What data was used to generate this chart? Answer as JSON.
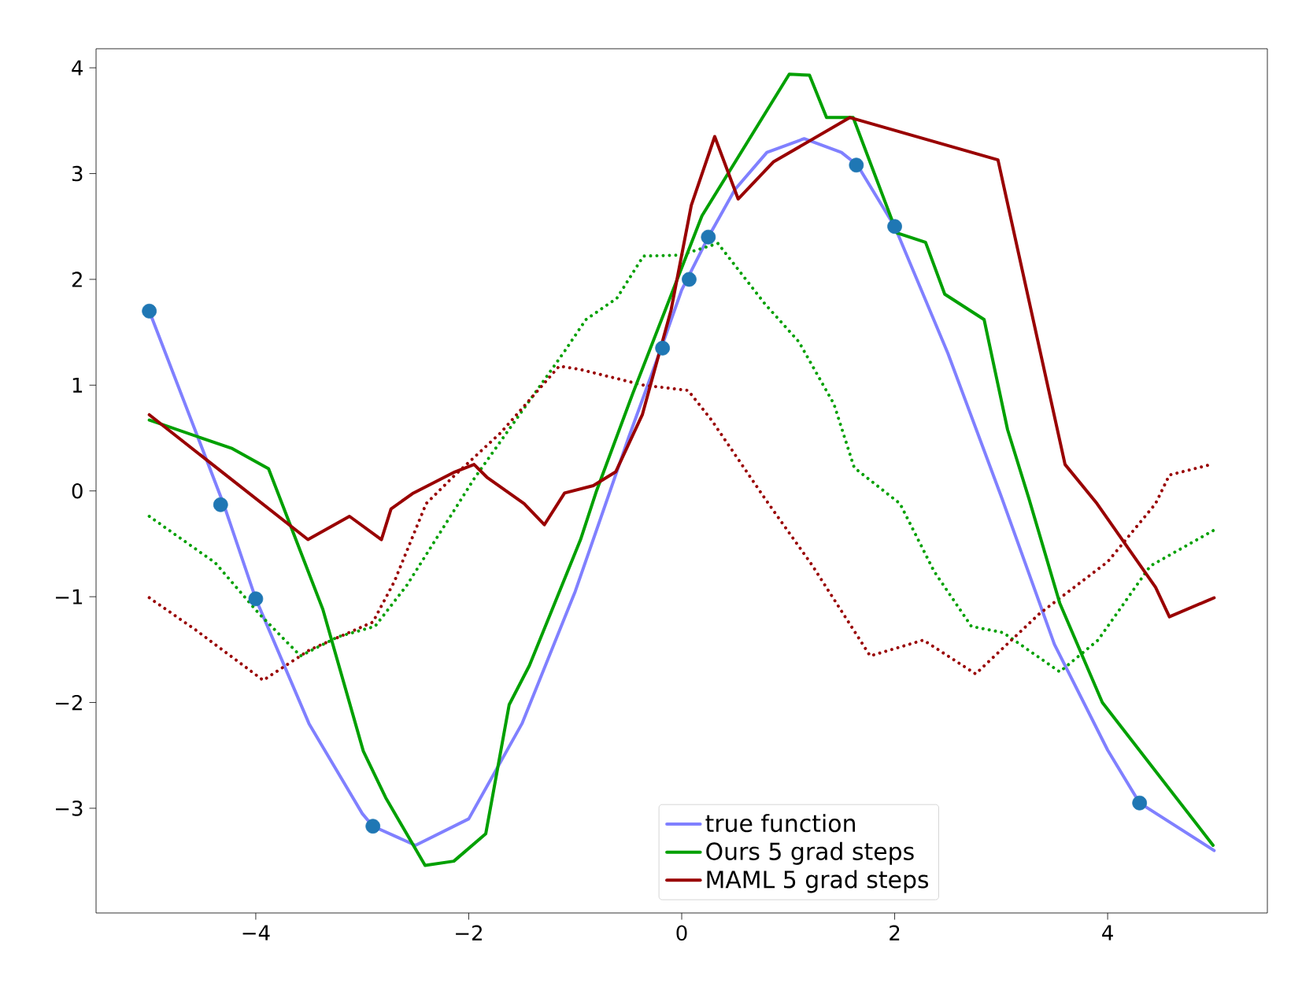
{
  "chart_data": {
    "type": "line",
    "xlim": [
      -5.5,
      5.5
    ],
    "ylim": [
      -3.99,
      4.18
    ],
    "xticks": [
      {
        "value": -4,
        "label": "−4"
      },
      {
        "value": -2,
        "label": "−2"
      },
      0,
      2,
      4
    ],
    "yticks": [
      {
        "value": -3,
        "label": "−3"
      },
      {
        "value": -2,
        "label": "−2"
      },
      {
        "value": -1,
        "label": "−1"
      },
      0,
      1,
      2,
      3,
      4
    ],
    "grid": false,
    "legend": "bottom",
    "series": [
      {
        "name": "true function",
        "color": "#8080ff",
        "line_style": "solid",
        "x": [
          -5,
          -4.3,
          -4,
          -3.5,
          -3,
          -2.9,
          -2.5,
          -2,
          -1.5,
          -1,
          -0.5,
          -0.2,
          0,
          0.25,
          0.5,
          0.8,
          1.15,
          1.5,
          1.65,
          2,
          2.5,
          3,
          3.5,
          4,
          4.3,
          5
        ],
        "values": [
          1.7,
          -0.13,
          -1.02,
          -2.2,
          -3.05,
          -3.17,
          -3.35,
          -3.1,
          -2.2,
          -0.95,
          0.5,
          1.33,
          1.9,
          2.4,
          2.85,
          3.2,
          3.33,
          3.2,
          3.08,
          2.5,
          1.3,
          -0.05,
          -1.45,
          -2.45,
          -2.95,
          -3.4
        ]
      },
      {
        "type": "scatter",
        "color": "#1f77b4",
        "marker": "circle",
        "x": [
          -5,
          -4.33,
          -4.0,
          -2.9,
          -0.18,
          0.07,
          0.25,
          1.64,
          2.0,
          4.3
        ],
        "values": [
          1.7,
          -0.13,
          -1.02,
          -3.17,
          1.35,
          2.0,
          2.4,
          3.08,
          2.5,
          -2.95
        ]
      },
      {
        "color": "#00a000",
        "line_style": "dotted",
        "x": [
          -5,
          -4.38,
          -3.97,
          -3.58,
          -3.23,
          -2.88,
          -2.58,
          -1.94,
          -1.1,
          -0.9,
          -0.61,
          -0.36,
          -0.01,
          0.34,
          0.78,
          1.1,
          1.43,
          1.62,
          2.05,
          2.37,
          2.72,
          3.02,
          3.55,
          3.91,
          4.4,
          5.0
        ],
        "values": [
          -0.24,
          -0.68,
          -1.16,
          -1.56,
          -1.38,
          -1.28,
          -0.89,
          0.13,
          1.32,
          1.62,
          1.82,
          2.22,
          2.23,
          2.34,
          1.77,
          1.41,
          0.82,
          0.22,
          -0.12,
          -0.76,
          -1.28,
          -1.34,
          -1.71,
          -1.41,
          -0.71,
          -0.37
        ]
      },
      {
        "color": "#990000",
        "line_style": "dotted",
        "x": [
          -5,
          -4.57,
          -3.93,
          -3.49,
          -2.9,
          -2.7,
          -2.4,
          -2.15,
          -1.7,
          -1.15,
          -0.96,
          -0.36,
          0.06,
          0.28,
          0.78,
          1.23,
          1.77,
          2.27,
          2.76,
          3.36,
          4.0,
          4.45,
          4.58,
          4.97
        ],
        "values": [
          -1.01,
          -1.31,
          -1.79,
          -1.5,
          -1.24,
          -0.86,
          -0.12,
          0.13,
          0.55,
          1.18,
          1.15,
          1.0,
          0.95,
          0.67,
          -0.07,
          -0.71,
          -1.56,
          -1.41,
          -1.73,
          -1.16,
          -0.67,
          -0.12,
          0.15,
          0.25
        ]
      },
      {
        "name": "Ours 5 grad steps",
        "color": "#00a000",
        "line_style": "solid",
        "x": [
          -5,
          -4.22,
          -3.88,
          -3.37,
          -2.99,
          -2.78,
          -2.41,
          -2.14,
          -1.84,
          -1.62,
          -1.43,
          -0.95,
          -0.8,
          -0.46,
          0.19,
          1.01,
          1.2,
          1.36,
          1.61,
          2.02,
          2.29,
          2.47,
          2.84,
          3.06,
          3.26,
          3.55,
          3.95,
          4.99
        ],
        "values": [
          0.67,
          0.4,
          0.21,
          -1.12,
          -2.46,
          -2.9,
          -3.54,
          -3.5,
          -3.24,
          -2.02,
          -1.65,
          -0.46,
          0,
          0.92,
          2.6,
          3.94,
          3.93,
          3.53,
          3.53,
          2.44,
          2.35,
          1.86,
          1.62,
          0.58,
          -0.07,
          -1.06,
          -2.0,
          -3.35
        ]
      },
      {
        "name": "MAML 5 grad steps",
        "color": "#990000",
        "line_style": "solid",
        "x": [
          -5,
          -3.51,
          -3.12,
          -2.82,
          -2.73,
          -2.52,
          -2.13,
          -1.95,
          -1.83,
          -1.48,
          -1.29,
          -1.1,
          -0.83,
          -0.62,
          -0.37,
          -0.1,
          0.09,
          0.31,
          0.53,
          0.86,
          1.58,
          2.97,
          3.6,
          3.9,
          4.45,
          4.58,
          5.0
        ],
        "values": [
          0.72,
          -0.46,
          -0.24,
          -0.46,
          -0.17,
          -0.02,
          0.18,
          0.25,
          0.13,
          -0.12,
          -0.32,
          -0.02,
          0.05,
          0.18,
          0.72,
          1.71,
          2.7,
          3.35,
          2.76,
          3.11,
          3.53,
          3.13,
          0.25,
          -0.12,
          -0.91,
          -1.19,
          -1.01
        ]
      }
    ]
  }
}
